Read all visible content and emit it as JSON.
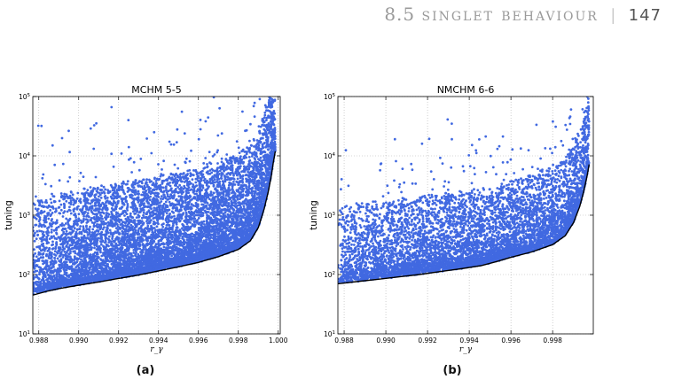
{
  "header": {
    "section_number": "8.5",
    "section_title": "singlet behaviour",
    "separator": "|",
    "page_number": "147"
  },
  "chart_data": [
    {
      "type": "scatter",
      "title": "MCHM 5-5",
      "xlabel": "r_γ",
      "ylabel": "tuning",
      "yscale": "log",
      "xlim": [
        0.9877,
        1.0001
      ],
      "ylim": [
        10,
        100000
      ],
      "xticks": [
        "0.988",
        "0.990",
        "0.992",
        "0.994",
        "0.996",
        "0.998",
        "1.000"
      ],
      "xtick_values": [
        0.988,
        0.99,
        0.992,
        0.994,
        0.996,
        0.998,
        1.0
      ],
      "yticks": [
        {
          "base": "10",
          "exp": "1",
          "value": 10
        },
        {
          "base": "10",
          "exp": "2",
          "value": 100
        },
        {
          "base": "10",
          "exp": "3",
          "value": 1000
        },
        {
          "base": "10",
          "exp": "4",
          "value": 10000
        },
        {
          "base": "10",
          "exp": "5",
          "value": 100000
        }
      ],
      "grid": true,
      "point_color": "#4169E1",
      "boundary_color": "#000000",
      "boundary": {
        "x": [
          0.9877,
          0.9884,
          0.989,
          0.99,
          0.991,
          0.992,
          0.993,
          0.994,
          0.995,
          0.996,
          0.997,
          0.998,
          0.9986,
          0.999,
          0.9993,
          0.9995,
          0.99965,
          0.99975,
          0.99985
        ],
        "y": [
          45,
          52,
          58,
          66,
          75,
          86,
          98,
          115,
          135,
          160,
          200,
          265,
          370,
          620,
          1300,
          2500,
          4600,
          7600,
          12000
        ]
      },
      "caption": "(a)"
    },
    {
      "type": "scatter",
      "title": "NMCHM 6-6",
      "xlabel": "r_γ",
      "ylabel": "tuning",
      "yscale": "log",
      "xlim": [
        0.9877,
        0.99995
      ],
      "ylim": [
        10,
        100000
      ],
      "xticks": [
        "0.988",
        "0.990",
        "0.992",
        "0.994",
        "0.996",
        "0.998"
      ],
      "xtick_values": [
        0.988,
        0.99,
        0.992,
        0.994,
        0.996,
        0.998
      ],
      "yticks": [
        {
          "base": "10",
          "exp": "1",
          "value": 10
        },
        {
          "base": "10",
          "exp": "2",
          "value": 100
        },
        {
          "base": "10",
          "exp": "3",
          "value": 1000
        },
        {
          "base": "10",
          "exp": "4",
          "value": 10000
        },
        {
          "base": "10",
          "exp": "5",
          "value": 100000
        }
      ],
      "grid": true,
      "point_color": "#4169E1",
      "boundary_color": "#000000",
      "boundary": {
        "x": [
          0.9877,
          0.9886,
          0.9896,
          0.9906,
          0.9916,
          0.9926,
          0.9936,
          0.9946,
          0.9953,
          0.996,
          0.997,
          0.998,
          0.9986,
          0.999,
          0.9993,
          0.9995,
          0.99965,
          0.99975
        ],
        "y": [
          70,
          76,
          83,
          91,
          100,
          112,
          125,
          142,
          165,
          195,
          240,
          320,
          450,
          750,
          1400,
          2600,
          4500,
          7200
        ]
      },
      "caption": "(b)"
    }
  ]
}
